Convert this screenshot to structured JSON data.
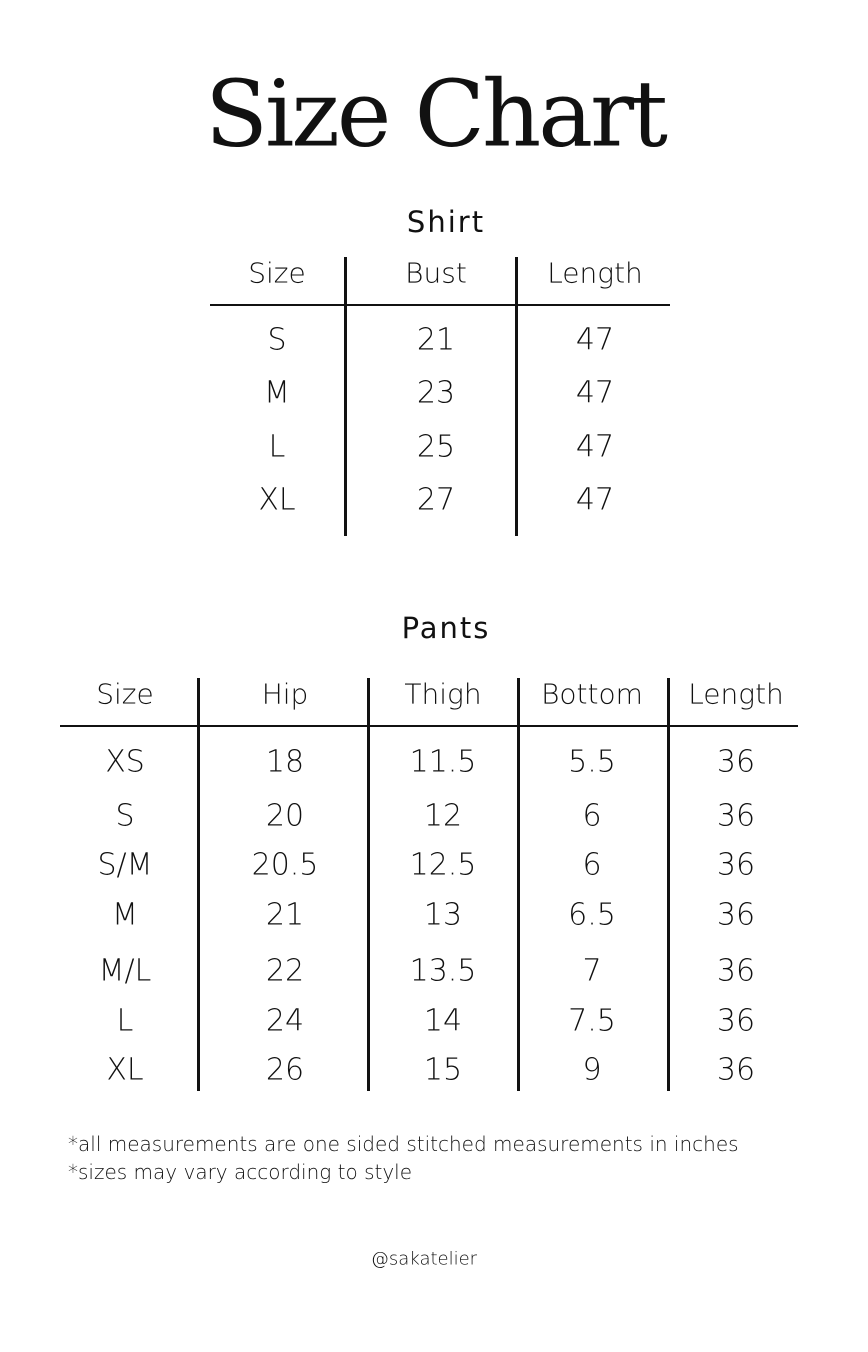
{
  "title": "Size Chart",
  "shirt": {
    "title": "Shirt",
    "headers": [
      "Size",
      "Bust",
      "Length"
    ],
    "rows": [
      [
        "S",
        "21",
        "47"
      ],
      [
        "M",
        "23",
        "47"
      ],
      [
        "L",
        "25",
        "47"
      ],
      [
        "XL",
        "27",
        "47"
      ]
    ]
  },
  "pants": {
    "title": "Pants",
    "headers": [
      "Size",
      "Hip",
      "Thigh",
      "Bottom",
      "Length"
    ],
    "rows": [
      [
        "XS",
        "18",
        "11.5",
        "5.5",
        "36"
      ],
      [
        "S",
        "20",
        "12",
        "6",
        "36"
      ],
      [
        "S/M",
        "20.5",
        "12.5",
        "6",
        "36"
      ],
      [
        "M",
        "21",
        "13",
        "6.5",
        "36"
      ],
      [
        "M/L",
        "22",
        "13.5",
        "7",
        "36"
      ],
      [
        "L",
        "24",
        "14",
        "7.5",
        "36"
      ],
      [
        "XL",
        "26",
        "15",
        "9",
        "36"
      ]
    ]
  },
  "notes": [
    "*all measurements are one sided stitched measurements in inches",
    "*sizes may vary according to style"
  ],
  "handle": "@sakatelier"
}
